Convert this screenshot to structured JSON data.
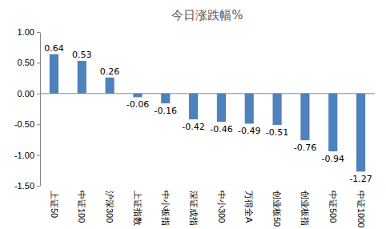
{
  "chart_data": {
    "type": "bar",
    "title": "今日涨跌幅%",
    "categories": [
      "上证50",
      "中证100",
      "沪深300",
      "上证指数",
      "中小板指",
      "深证成指",
      "中小300",
      "万得全A",
      "创业板50",
      "创业板指",
      "中证500",
      "中证1000"
    ],
    "values": [
      0.64,
      0.53,
      0.26,
      -0.06,
      -0.16,
      -0.42,
      -0.46,
      -0.49,
      -0.51,
      -0.76,
      -0.94,
      -1.27
    ],
    "color": "#4f81bd",
    "ylim": [
      -1.5,
      1.0
    ],
    "yticks": [
      {
        "value": -1.5,
        "label": "-1.50"
      },
      {
        "value": -1.0,
        "label": "-1.00"
      },
      {
        "value": -0.5,
        "label": "-0.50"
      },
      {
        "value": 0,
        "label": "0.00"
      },
      {
        "value": 0.5,
        "label": "0.50"
      },
      {
        "value": 1.0,
        "label": "1.00"
      }
    ],
    "grid": false,
    "data_labels": true
  }
}
